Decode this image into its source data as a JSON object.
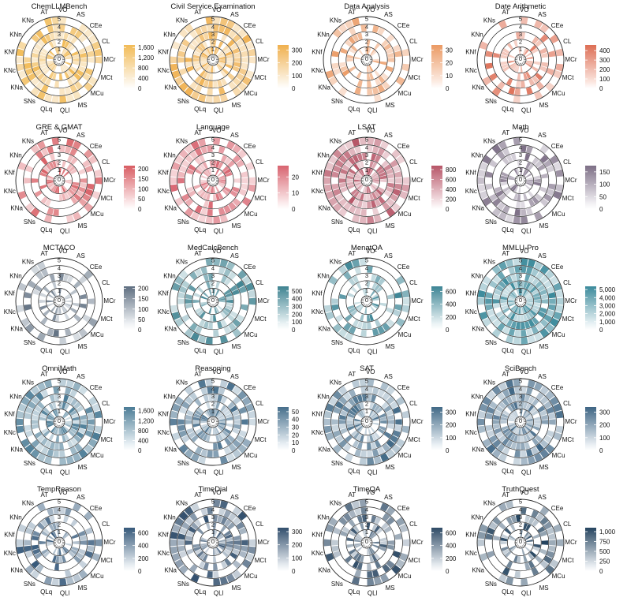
{
  "figure": {
    "axis_labels": [
      "VO",
      "AS",
      "CEe",
      "CL",
      "MCr",
      "MCt",
      "MCu",
      "MS",
      "QLl",
      "QLq",
      "SNs",
      "KNa",
      "KNc",
      "KNf",
      "KNn",
      "KNs",
      "AT"
    ],
    "ring_labels": [
      "0",
      "1",
      "2",
      "3",
      "4",
      "5"
    ]
  },
  "chart_data": [
    {
      "type": "radial-heatmap",
      "title": "ChemLLMBench",
      "colors": [
        "#fcf4e6",
        "#f2bb57"
      ],
      "ticks": [
        0,
        400,
        800,
        1200,
        1600
      ],
      "tick_labels": [
        "0",
        "400",
        "800",
        "1,200",
        "1,600"
      ],
      "max": 1700,
      "seed": 1,
      "density": 0.75
    },
    {
      "type": "radial-heatmap",
      "title": "Civil Service Examination",
      "colors": [
        "#fcf4e6",
        "#f0b04e"
      ],
      "ticks": [
        0,
        100,
        200,
        300
      ],
      "tick_labels": [
        "0",
        "100",
        "200",
        "300"
      ],
      "max": 340,
      "seed": 2,
      "density": 0.8
    },
    {
      "type": "radial-heatmap",
      "title": "Data Analysis",
      "colors": [
        "#fcece4",
        "#eb9a64"
      ],
      "ticks": [
        0,
        10,
        20,
        30
      ],
      "tick_labels": [
        "0",
        "10",
        "20",
        "30"
      ],
      "max": 34,
      "seed": 3,
      "density": 0.45
    },
    {
      "type": "radial-heatmap",
      "title": "Date Arithmetic",
      "colors": [
        "#fbe6df",
        "#dd6e55"
      ],
      "ticks": [
        0,
        100,
        200,
        300,
        400
      ],
      "tick_labels": [
        "0",
        "100",
        "200",
        "300",
        "400"
      ],
      "max": 460,
      "seed": 4,
      "density": 0.4
    },
    {
      "type": "radial-heatmap",
      "title": "GRE & GMAT",
      "colors": [
        "#fbe9ea",
        "#d85d63"
      ],
      "ticks": [
        0,
        50,
        100,
        150,
        200
      ],
      "tick_labels": [
        "0",
        "50",
        "100",
        "150",
        "200"
      ],
      "max": 215,
      "seed": 5,
      "density": 0.5
    },
    {
      "type": "radial-heatmap",
      "title": "Language",
      "colors": [
        "#fbeaeb",
        "#d86470"
      ],
      "ticks": [
        0,
        10,
        20
      ],
      "tick_labels": [
        "0",
        "10",
        "20"
      ],
      "max": 27,
      "seed": 6,
      "density": 0.6
    },
    {
      "type": "radial-heatmap",
      "title": "LSAT",
      "colors": [
        "#f6e7ea",
        "#b75567"
      ],
      "ticks": [
        0,
        200,
        400,
        600,
        800
      ],
      "tick_labels": [
        "0",
        "200",
        "400",
        "600",
        "800"
      ],
      "max": 880,
      "seed": 7,
      "density": 0.85
    },
    {
      "type": "radial-heatmap",
      "title": "Math",
      "colors": [
        "#f0eef2",
        "#7d6f86"
      ],
      "ticks": [
        0,
        50,
        100,
        150
      ],
      "tick_labels": [
        "0",
        "50",
        "100",
        "150"
      ],
      "max": 175,
      "seed": 8,
      "density": 0.6
    },
    {
      "type": "radial-heatmap",
      "title": "MCTACO",
      "colors": [
        "#eef1f4",
        "#5e6e80"
      ],
      "ticks": [
        0,
        50,
        100,
        150,
        200
      ],
      "tick_labels": [
        "0",
        "50",
        "100",
        "150",
        "200"
      ],
      "max": 210,
      "seed": 9,
      "density": 0.35
    },
    {
      "type": "radial-heatmap",
      "title": "MedCalcBench",
      "colors": [
        "#e9f2f4",
        "#3f8391"
      ],
      "ticks": [
        0,
        100,
        200,
        300,
        400,
        500
      ],
      "tick_labels": [
        "0",
        "100",
        "200",
        "300",
        "400",
        "500"
      ],
      "max": 560,
      "seed": 10,
      "density": 0.6
    },
    {
      "type": "radial-heatmap",
      "title": "MenatQA",
      "colors": [
        "#e9f2f4",
        "#3d8595"
      ],
      "ticks": [
        0,
        200,
        400,
        600
      ],
      "tick_labels": [
        "0",
        "200",
        "400",
        "600"
      ],
      "max": 680,
      "seed": 11,
      "density": 0.4
    },
    {
      "type": "radial-heatmap",
      "title": "MMLU-Pro",
      "colors": [
        "#e7f1f4",
        "#3b8a9b"
      ],
      "ticks": [
        0,
        1000,
        2000,
        3000,
        4000,
        5000
      ],
      "tick_labels": [
        "0",
        "1,000",
        "2,000",
        "3,000",
        "4,000",
        "5,000"
      ],
      "max": 5400,
      "seed": 12,
      "density": 0.9
    },
    {
      "type": "radial-heatmap",
      "title": "OmniMath",
      "colors": [
        "#e8f0f4",
        "#4b7c96"
      ],
      "ticks": [
        0,
        400,
        800,
        1200,
        1600
      ],
      "tick_labels": [
        "0",
        "400",
        "800",
        "1,200",
        "1,600"
      ],
      "max": 1750,
      "seed": 13,
      "density": 0.75
    },
    {
      "type": "radial-heatmap",
      "title": "Reasoning",
      "colors": [
        "#e8eff4",
        "#476f8c"
      ],
      "ticks": [
        0,
        10,
        20,
        30,
        40,
        50
      ],
      "tick_labels": [
        "0",
        "10",
        "20",
        "30",
        "40",
        "50"
      ],
      "max": 56,
      "seed": 14,
      "density": 0.7
    },
    {
      "type": "radial-heatmap",
      "title": "SAT",
      "colors": [
        "#e7eef3",
        "#426a87"
      ],
      "ticks": [
        0,
        100,
        200,
        300
      ],
      "tick_labels": [
        "0",
        "100",
        "200",
        "300"
      ],
      "max": 340,
      "seed": 15,
      "density": 0.75
    },
    {
      "type": "radial-heatmap",
      "title": "SciBench",
      "colors": [
        "#e7edf2",
        "#3e6584"
      ],
      "ticks": [
        0,
        100,
        200,
        300
      ],
      "tick_labels": [
        "0",
        "100",
        "200",
        "300"
      ],
      "max": 340,
      "seed": 16,
      "density": 0.8
    },
    {
      "type": "radial-heatmap",
      "title": "TempReason",
      "colors": [
        "#e6ecf1",
        "#36597a"
      ],
      "ticks": [
        0,
        200,
        400,
        600
      ],
      "tick_labels": [
        "0",
        "200",
        "400",
        "600"
      ],
      "max": 680,
      "seed": 17,
      "density": 0.55
    },
    {
      "type": "radial-heatmap",
      "title": "TimeDial",
      "colors": [
        "#e6ebf0",
        "#324f6d"
      ],
      "ticks": [
        0,
        100,
        200,
        300
      ],
      "tick_labels": [
        "0",
        "100",
        "200",
        "300"
      ],
      "max": 330,
      "seed": 18,
      "density": 0.6
    },
    {
      "type": "radial-heatmap",
      "title": "TimeQA",
      "colors": [
        "#e5eaef",
        "#2f4b66"
      ],
      "ticks": [
        0,
        200,
        400,
        600
      ],
      "tick_labels": [
        "0",
        "200",
        "400",
        "600"
      ],
      "max": 680,
      "seed": 19,
      "density": 0.55
    },
    {
      "type": "radial-heatmap",
      "title": "TruthQuest",
      "colors": [
        "#e3e9ee",
        "#25445f"
      ],
      "ticks": [
        0,
        250,
        500,
        750,
        1000
      ],
      "tick_labels": [
        "0",
        "250",
        "500",
        "750",
        "1,000"
      ],
      "max": 1100,
      "seed": 20,
      "density": 0.55
    }
  ]
}
